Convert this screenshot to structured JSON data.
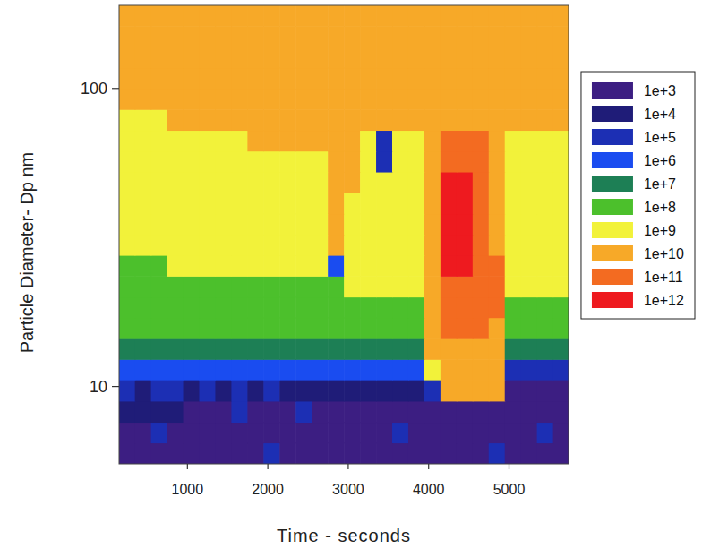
{
  "chart_data": {
    "type": "heatmap",
    "xlabel": "Time - seconds",
    "ylabel": "Particle Diameter- Dp nm",
    "log": "y",
    "legend": "right",
    "xlim": [
      150,
      5740
    ],
    "ylim": [
      5.5,
      190
    ],
    "xticks": [
      1000,
      2000,
      3000,
      4000,
      5000
    ],
    "yticks": [
      10,
      100
    ],
    "x": [
      250,
      450,
      650,
      850,
      1050,
      1250,
      1450,
      1650,
      1850,
      2050,
      2250,
      2450,
      2650,
      2850,
      3050,
      3250,
      3450,
      3650,
      3850,
      4050,
      4250,
      4450,
      4650,
      4850,
      5050,
      5250,
      5450,
      5650
    ],
    "y": [
      5.96,
      7.0,
      8.2,
      9.7,
      11.4,
      13.3,
      15.7,
      18.4,
      21.6,
      25.4,
      29.8,
      35,
      41.1,
      48.3,
      56.8,
      66.7,
      78.3,
      92,
      108,
      127,
      149,
      175
    ],
    "cells": [
      [
        1000.0,
        1000.0,
        1000.0,
        1000.0,
        1000.0,
        1000.0,
        1000.0,
        1000.0,
        1000.0,
        100000.0,
        1000.0,
        1000.0,
        1000.0,
        1000.0,
        1000.0,
        1000.0,
        1000.0,
        1000.0,
        1000.0,
        1000.0,
        1000.0,
        1000.0,
        1000.0,
        100000.0,
        1000.0,
        1000.0,
        1000.0,
        1000.0
      ],
      [
        1000.0,
        1000.0,
        100000.0,
        1000.0,
        1000.0,
        1000.0,
        1000.0,
        1000.0,
        1000.0,
        1000.0,
        1000.0,
        1000.0,
        1000.0,
        1000.0,
        1000.0,
        1000.0,
        1000.0,
        100000.0,
        1000.0,
        1000.0,
        1000.0,
        1000.0,
        1000.0,
        1000.0,
        1000.0,
        1000.0,
        100000.0,
        1000.0
      ],
      [
        10000.0,
        10000.0,
        10000.0,
        10000.0,
        1000.0,
        1000.0,
        1000.0,
        100000.0,
        1000.0,
        1000.0,
        1000.0,
        100000.0,
        1000.0,
        1000.0,
        1000.0,
        1000.0,
        1000.0,
        1000.0,
        1000.0,
        1000.0,
        1000.0,
        1000.0,
        1000.0,
        1000.0,
        1000.0,
        1000.0,
        1000.0,
        1000.0
      ],
      [
        100000.0,
        10000.0,
        100000.0,
        100000.0,
        10000.0,
        100000.0,
        10000.0,
        100000.0,
        10000.0,
        100000.0,
        10000.0,
        10000.0,
        10000.0,
        10000.0,
        10000.0,
        10000.0,
        10000.0,
        10000.0,
        10000.0,
        100000.0,
        10000000000.0,
        10000000000.0,
        10000000000.0,
        10000000000.0,
        1000.0,
        1000.0,
        1000.0,
        1000.0
      ],
      [
        1000000.0,
        1000000.0,
        1000000.0,
        1000000.0,
        1000000.0,
        1000000.0,
        1000000.0,
        1000000.0,
        1000000.0,
        1000000.0,
        1000000.0,
        1000000.0,
        1000000.0,
        1000000.0,
        1000000.0,
        1000000.0,
        1000000.0,
        1000000.0,
        1000000.0,
        1000000000.0,
        10000000000.0,
        10000000000.0,
        10000000000.0,
        10000000000.0,
        100000.0,
        100000.0,
        100000.0,
        100000.0
      ],
      [
        10000000.0,
        10000000.0,
        10000000.0,
        10000000.0,
        10000000.0,
        10000000.0,
        10000000.0,
        10000000.0,
        10000000.0,
        10000000.0,
        10000000.0,
        10000000.0,
        10000000.0,
        10000000.0,
        10000000.0,
        10000000.0,
        10000000.0,
        10000000.0,
        10000000.0,
        10000000000.0,
        10000000000.0,
        10000000000.0,
        10000000000.0,
        10000000000.0,
        10000000.0,
        10000000.0,
        10000000.0,
        10000000.0
      ],
      [
        100000000.0,
        100000000.0,
        100000000.0,
        100000000.0,
        100000000.0,
        100000000.0,
        100000000.0,
        100000000.0,
        100000000.0,
        100000000.0,
        100000000.0,
        100000000.0,
        100000000.0,
        100000000.0,
        100000000.0,
        100000000.0,
        100000000.0,
        100000000.0,
        100000000.0,
        10000000000.0,
        100000000000.0,
        100000000000.0,
        100000000000.0,
        10000000000.0,
        100000000.0,
        100000000.0,
        100000000.0,
        100000000.0
      ],
      [
        100000000.0,
        100000000.0,
        100000000.0,
        100000000.0,
        100000000.0,
        100000000.0,
        100000000.0,
        100000000.0,
        100000000.0,
        100000000.0,
        100000000.0,
        100000000.0,
        100000000.0,
        100000000.0,
        100000000.0,
        100000000.0,
        100000000.0,
        100000000.0,
        100000000.0,
        10000000000.0,
        100000000000.0,
        100000000000.0,
        100000000000.0,
        100000000000.0,
        100000000.0,
        100000000.0,
        100000000.0,
        100000000.0
      ],
      [
        100000000.0,
        100000000.0,
        100000000.0,
        100000000.0,
        100000000.0,
        100000000.0,
        100000000.0,
        100000000.0,
        100000000.0,
        100000000.0,
        100000000.0,
        100000000.0,
        100000000.0,
        100000000.0,
        1000000000.0,
        1000000000.0,
        1000000000.0,
        1000000000.0,
        1000000000.0,
        10000000000.0,
        100000000000.0,
        100000000000.0,
        100000000000.0,
        100000000000.0,
        1000000000.0,
        1000000000.0,
        1000000000.0,
        1000000000.0
      ],
      [
        100000000.0,
        100000000.0,
        100000000.0,
        1000000000.0,
        1000000000.0,
        1000000000.0,
        1000000000.0,
        1000000000.0,
        1000000000.0,
        1000000000.0,
        1000000000.0,
        1000000000.0,
        1000000000.0,
        1000000.0,
        1000000000.0,
        1000000000.0,
        1000000000.0,
        1000000000.0,
        1000000000.0,
        10000000000.0,
        1000000000000.0,
        1000000000000.0,
        100000000000.0,
        100000000000.0,
        1000000000.0,
        1000000000.0,
        1000000000.0,
        1000000000.0
      ],
      [
        1000000000.0,
        1000000000.0,
        1000000000.0,
        1000000000.0,
        1000000000.0,
        1000000000.0,
        1000000000.0,
        1000000000.0,
        1000000000.0,
        1000000000.0,
        1000000000.0,
        1000000000.0,
        1000000000.0,
        10000000000.0,
        1000000000.0,
        1000000000.0,
        1000000000.0,
        1000000000.0,
        1000000000.0,
        10000000000.0,
        1000000000000.0,
        1000000000000.0,
        100000000000.0,
        10000000000.0,
        1000000000.0,
        1000000000.0,
        1000000000.0,
        1000000000.0
      ],
      [
        1000000000.0,
        1000000000.0,
        1000000000.0,
        1000000000.0,
        1000000000.0,
        1000000000.0,
        1000000000.0,
        1000000000.0,
        1000000000.0,
        1000000000.0,
        1000000000.0,
        1000000000.0,
        1000000000.0,
        10000000000.0,
        1000000000.0,
        1000000000.0,
        1000000000.0,
        1000000000.0,
        1000000000.0,
        10000000000.0,
        1000000000000.0,
        1000000000000.0,
        100000000000.0,
        10000000000.0,
        1000000000.0,
        1000000000.0,
        1000000000.0,
        1000000000.0
      ],
      [
        1000000000.0,
        1000000000.0,
        1000000000.0,
        1000000000.0,
        1000000000.0,
        1000000000.0,
        1000000000.0,
        1000000000.0,
        1000000000.0,
        1000000000.0,
        1000000000.0,
        1000000000.0,
        1000000000.0,
        10000000000.0,
        1000000000.0,
        1000000000.0,
        1000000000.0,
        1000000000.0,
        1000000000.0,
        10000000000.0,
        1000000000000.0,
        1000000000000.0,
        100000000000.0,
        10000000000.0,
        1000000000.0,
        1000000000.0,
        1000000000.0,
        1000000000.0
      ],
      [
        1000000000.0,
        1000000000.0,
        1000000000.0,
        1000000000.0,
        1000000000.0,
        1000000000.0,
        1000000000.0,
        1000000000.0,
        1000000000.0,
        1000000000.0,
        1000000000.0,
        1000000000.0,
        1000000000.0,
        10000000000.0,
        10000000000.0,
        1000000000.0,
        1000000000.0,
        1000000000.0,
        1000000000.0,
        10000000000.0,
        1000000000000.0,
        1000000000000.0,
        100000000000.0,
        10000000000.0,
        1000000000.0,
        1000000000.0,
        1000000000.0,
        1000000000.0
      ],
      [
        1000000000.0,
        1000000000.0,
        1000000000.0,
        1000000000.0,
        1000000000.0,
        1000000000.0,
        1000000000.0,
        1000000000.0,
        1000000000.0,
        1000000000.0,
        1000000000.0,
        1000000000.0,
        1000000000.0,
        10000000000.0,
        10000000000.0,
        1000000000.0,
        100000.0,
        1000000000.0,
        1000000000.0,
        10000000000.0,
        100000000000.0,
        100000000000.0,
        100000000000.0,
        10000000000.0,
        1000000000.0,
        1000000000.0,
        1000000000.0,
        1000000000.0
      ],
      [
        1000000000.0,
        1000000000.0,
        1000000000.0,
        1000000000.0,
        1000000000.0,
        1000000000.0,
        1000000000.0,
        1000000000.0,
        10000000000.0,
        10000000000.0,
        10000000000.0,
        10000000000.0,
        10000000000.0,
        10000000000.0,
        10000000000.0,
        1000000000.0,
        100000.0,
        1000000000.0,
        1000000000.0,
        10000000000.0,
        100000000000.0,
        100000000000.0,
        100000000000.0,
        10000000000.0,
        1000000000.0,
        1000000000.0,
        1000000000.0,
        1000000000.0
      ],
      [
        1000000000.0,
        1000000000.0,
        1000000000.0,
        10000000000.0,
        10000000000.0,
        10000000000.0,
        10000000000.0,
        10000000000.0,
        10000000000.0,
        10000000000.0,
        10000000000.0,
        10000000000.0,
        10000000000.0,
        10000000000.0,
        10000000000.0,
        10000000000.0,
        10000000000.0,
        10000000000.0,
        10000000000.0,
        10000000000.0,
        10000000000.0,
        10000000000.0,
        10000000000.0,
        10000000000.0,
        10000000000.0,
        10000000000.0,
        10000000000.0,
        10000000000.0
      ],
      [
        10000000000.0,
        10000000000.0,
        10000000000.0,
        10000000000.0,
        10000000000.0,
        10000000000.0,
        10000000000.0,
        10000000000.0,
        10000000000.0,
        10000000000.0,
        10000000000.0,
        10000000000.0,
        10000000000.0,
        10000000000.0,
        10000000000.0,
        10000000000.0,
        10000000000.0,
        10000000000.0,
        10000000000.0,
        10000000000.0,
        10000000000.0,
        10000000000.0,
        10000000000.0,
        10000000000.0,
        10000000000.0,
        10000000000.0,
        10000000000.0,
        10000000000.0
      ],
      [
        10000000000.0,
        10000000000.0,
        10000000000.0,
        10000000000.0,
        10000000000.0,
        10000000000.0,
        10000000000.0,
        10000000000.0,
        10000000000.0,
        10000000000.0,
        10000000000.0,
        10000000000.0,
        10000000000.0,
        10000000000.0,
        10000000000.0,
        10000000000.0,
        10000000000.0,
        10000000000.0,
        10000000000.0,
        10000000000.0,
        10000000000.0,
        10000000000.0,
        10000000000.0,
        10000000000.0,
        10000000000.0,
        10000000000.0,
        10000000000.0,
        10000000000.0
      ],
      [
        10000000000.0,
        10000000000.0,
        10000000000.0,
        10000000000.0,
        10000000000.0,
        10000000000.0,
        10000000000.0,
        10000000000.0,
        10000000000.0,
        10000000000.0,
        10000000000.0,
        10000000000.0,
        10000000000.0,
        10000000000.0,
        10000000000.0,
        10000000000.0,
        10000000000.0,
        10000000000.0,
        10000000000.0,
        10000000000.0,
        10000000000.0,
        10000000000.0,
        10000000000.0,
        10000000000.0,
        10000000000.0,
        10000000000.0,
        10000000000.0,
        10000000000.0
      ],
      [
        10000000000.0,
        10000000000.0,
        10000000000.0,
        10000000000.0,
        10000000000.0,
        10000000000.0,
        10000000000.0,
        10000000000.0,
        10000000000.0,
        10000000000.0,
        10000000000.0,
        10000000000.0,
        10000000000.0,
        10000000000.0,
        10000000000.0,
        10000000000.0,
        10000000000.0,
        10000000000.0,
        10000000000.0,
        10000000000.0,
        10000000000.0,
        10000000000.0,
        10000000000.0,
        10000000000.0,
        10000000000.0,
        10000000000.0,
        10000000000.0,
        10000000000.0
      ],
      [
        10000000000.0,
        10000000000.0,
        10000000000.0,
        10000000000.0,
        10000000000.0,
        10000000000.0,
        10000000000.0,
        10000000000.0,
        10000000000.0,
        10000000000.0,
        10000000000.0,
        10000000000.0,
        10000000000.0,
        10000000000.0,
        10000000000.0,
        10000000000.0,
        10000000000.0,
        10000000000.0,
        10000000000.0,
        10000000000.0,
        10000000000.0,
        10000000000.0,
        10000000000.0,
        10000000000.0,
        10000000000.0,
        10000000000.0,
        10000000000.0,
        10000000000.0
      ]
    ],
    "colorbar_ticks": [
      {
        "value": 1000.0,
        "label": "1e+3"
      },
      {
        "value": 10000.0,
        "label": "1e+4"
      },
      {
        "value": 100000.0,
        "label": "1e+5"
      },
      {
        "value": 1000000.0,
        "label": "1e+6"
      },
      {
        "value": 10000000.0,
        "label": "1e+7"
      },
      {
        "value": 100000000.0,
        "label": "1e+8"
      },
      {
        "value": 1000000000.0,
        "label": "1e+9"
      },
      {
        "value": 10000000000.0,
        "label": "1e+10"
      },
      {
        "value": 100000000000.0,
        "label": "1e+11"
      },
      {
        "value": 1000000000000.0,
        "label": "1e+12"
      }
    ],
    "colorbar_colors": [
      "#3c1e82",
      "#1f1c78",
      "#1c2fb4",
      "#1a4cf0",
      "#1d7f55",
      "#4cc02c",
      "#f2f23a",
      "#f7a928",
      "#f36b21",
      "#ee1a1f"
    ]
  }
}
